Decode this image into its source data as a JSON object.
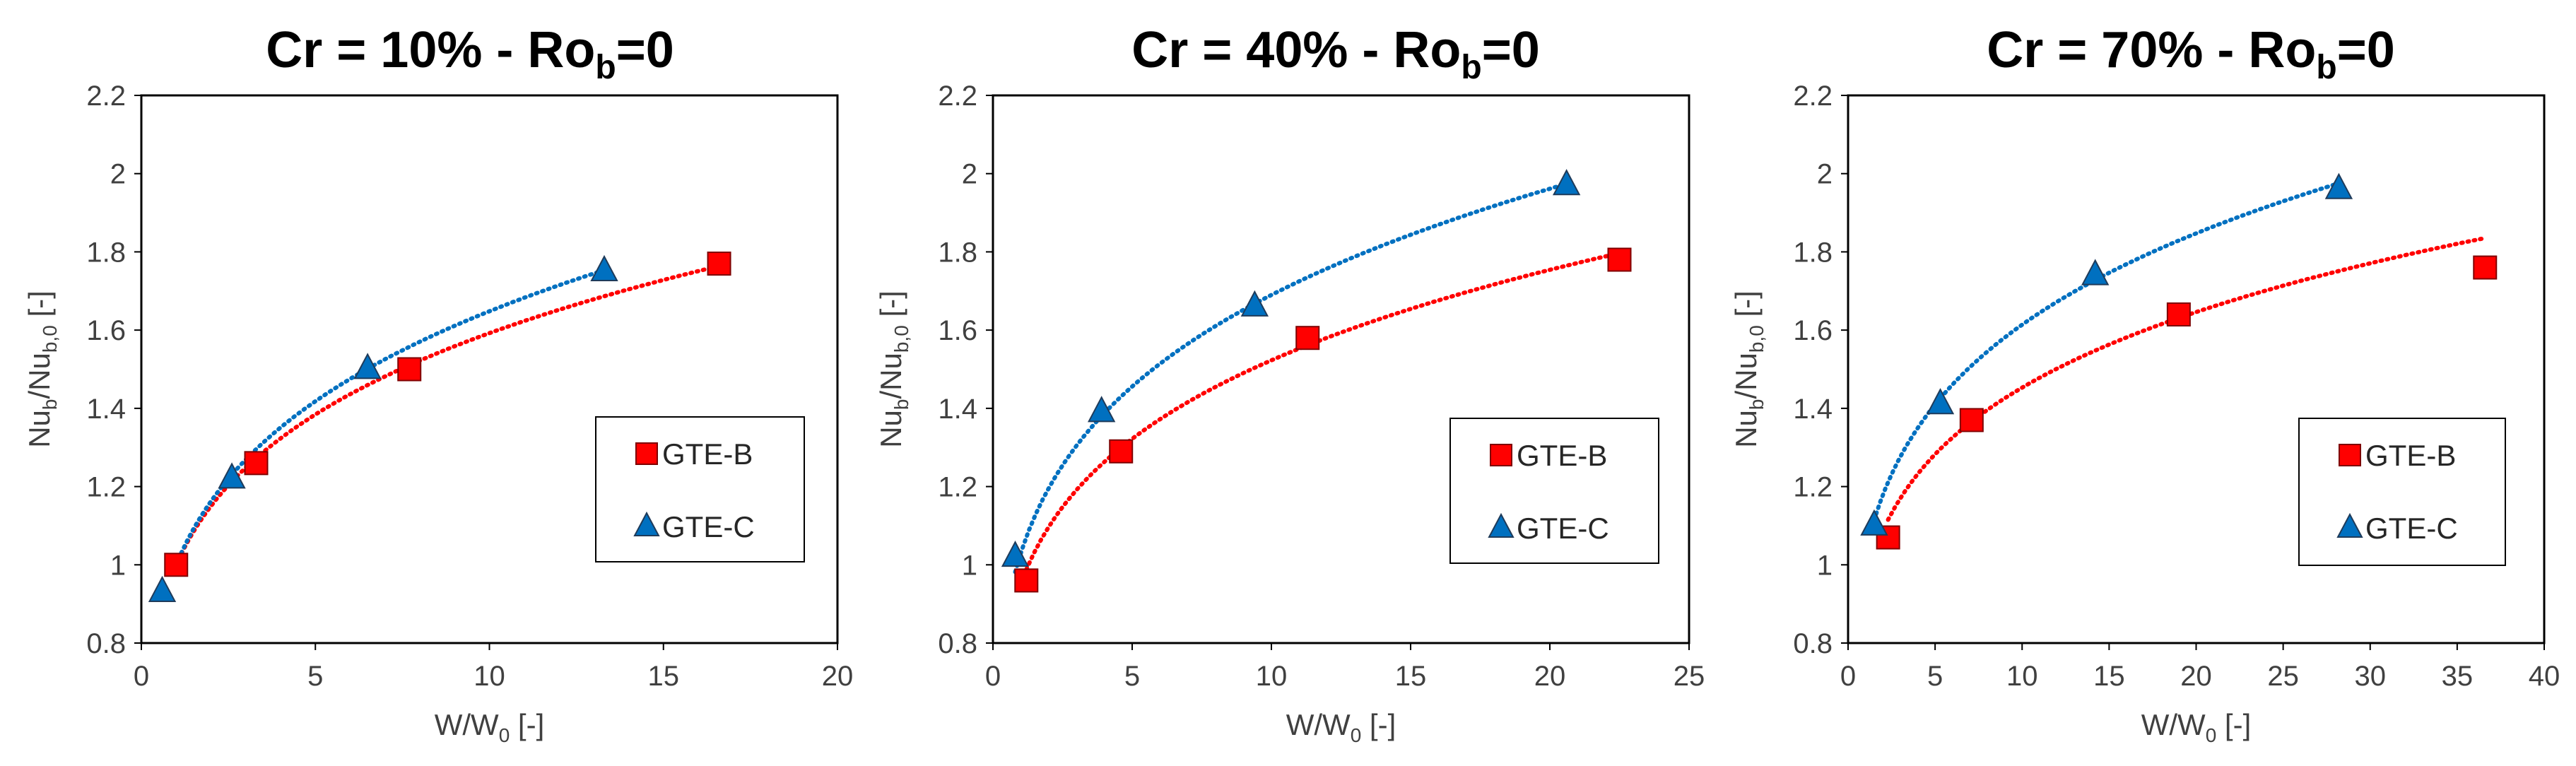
{
  "colors": {
    "gte_b": "#ff0000",
    "gte_c": "#0070c0",
    "trend_b": "#ff0000",
    "trend_c": "#0070c0",
    "axis": "#000000",
    "text": "#404040"
  },
  "chart_data": [
    {
      "type": "scatter",
      "title": {
        "main": "Cr = 10% - Ro",
        "sub": "b",
        "suffix": "=0"
      },
      "xlabel": {
        "main": "W/W",
        "sub": "0",
        "suffix": " [-]"
      },
      "ylabel": {
        "main": "Nu",
        "sub1": "b",
        "mid": "/Nu",
        "sub2": "b,0",
        "suffix": " [-]"
      },
      "xlim": [
        0,
        20
      ],
      "ylim": [
        0.8,
        2.2
      ],
      "xticks": [
        "0",
        "5",
        "10",
        "15",
        "20"
      ],
      "yticks": [
        "0.8",
        "1",
        "1.2",
        "1.4",
        "1.6",
        "1.8",
        "2",
        "2.2"
      ],
      "grid": false,
      "legend_position": "lower-right",
      "series": [
        {
          "name": "GTE-B",
          "marker": "square",
          "x": [
            1.0,
            3.3,
            7.7,
            16.6
          ],
          "y": [
            1.0,
            1.26,
            1.5,
            1.77
          ],
          "trend": {
            "type": "power",
            "a": 1.0,
            "b": 0.202,
            "x_range": [
              1.0,
              16.6
            ]
          }
        },
        {
          "name": "GTE-C",
          "marker": "triangle",
          "x": [
            0.6,
            2.6,
            6.5,
            13.3
          ],
          "y": [
            0.93,
            1.22,
            1.5,
            1.75
          ],
          "trend": {
            "type": "power",
            "a": 1.0,
            "b": 0.217,
            "x_range": [
              1.0,
              13.3
            ]
          }
        }
      ]
    },
    {
      "type": "scatter",
      "title": {
        "main": "Cr = 40% - Ro",
        "sub": "b",
        "suffix": "=0"
      },
      "xlabel": {
        "main": "W/W",
        "sub": "0",
        "suffix": " [-]"
      },
      "ylabel": {
        "main": "Nu",
        "sub1": "b",
        "mid": "/Nu",
        "sub2": "b,0",
        "suffix": " [-]"
      },
      "xlim": [
        0,
        25
      ],
      "ylim": [
        0.8,
        2.2
      ],
      "xticks": [
        "0",
        "5",
        "10",
        "15",
        "20",
        "25"
      ],
      "yticks": [
        "0.8",
        "1",
        "1.2",
        "1.4",
        "1.6",
        "1.8",
        "2",
        "2.2"
      ],
      "grid": false,
      "legend_position": "lower-right",
      "series": [
        {
          "name": "GTE-B",
          "marker": "square",
          "x": [
            1.2,
            4.6,
            11.3,
            22.5
          ],
          "y": [
            0.96,
            1.29,
            1.58,
            1.78
          ],
          "trend": {
            "type": "power",
            "a": 0.952,
            "b": 0.204,
            "x_range": [
              1.2,
              22.5
            ]
          }
        },
        {
          "name": "GTE-C",
          "marker": "triangle",
          "x": [
            0.8,
            3.9,
            9.4,
            20.6
          ],
          "y": [
            1.02,
            1.39,
            1.66,
            1.97
          ],
          "trend": {
            "type": "power",
            "a": 1.03,
            "b": 0.215,
            "x_range": [
              0.8,
              20.6
            ]
          }
        }
      ]
    },
    {
      "type": "scatter",
      "title": {
        "main": "Cr = 70% - Ro",
        "sub": "b",
        "suffix": "=0"
      },
      "xlabel": {
        "main": "W/W",
        "sub": "0",
        "suffix": " [-]"
      },
      "ylabel": {
        "main": "Nu",
        "sub1": "b",
        "mid": "/Nu",
        "sub2": "b,0",
        "suffix": " [-]"
      },
      "xlim": [
        0,
        40
      ],
      "ylim": [
        0.8,
        2.2
      ],
      "xticks": [
        "0",
        "5",
        "10",
        "15",
        "20",
        "25",
        "30",
        "35",
        "40"
      ],
      "yticks": [
        "0.8",
        "1",
        "1.2",
        "1.4",
        "1.6",
        "1.8",
        "2",
        "2.2"
      ],
      "grid": false,
      "legend_position": "lower-right",
      "series": [
        {
          "name": "GTE-B",
          "marker": "square",
          "x": [
            2.3,
            7.1,
            19.0,
            36.6
          ],
          "y": [
            1.07,
            1.37,
            1.64,
            1.76
          ],
          "trend": {
            "type": "power",
            "a": 0.96,
            "b": 0.18,
            "x_range": [
              2.3,
              36.6
            ]
          }
        },
        {
          "name": "GTE-C",
          "marker": "triangle",
          "x": [
            1.5,
            5.3,
            14.2,
            28.2
          ],
          "y": [
            1.1,
            1.41,
            1.74,
            1.96
          ],
          "trend": {
            "type": "power",
            "a": 1.03,
            "b": 0.195,
            "x_range": [
              1.5,
              28.2
            ]
          }
        }
      ]
    }
  ]
}
